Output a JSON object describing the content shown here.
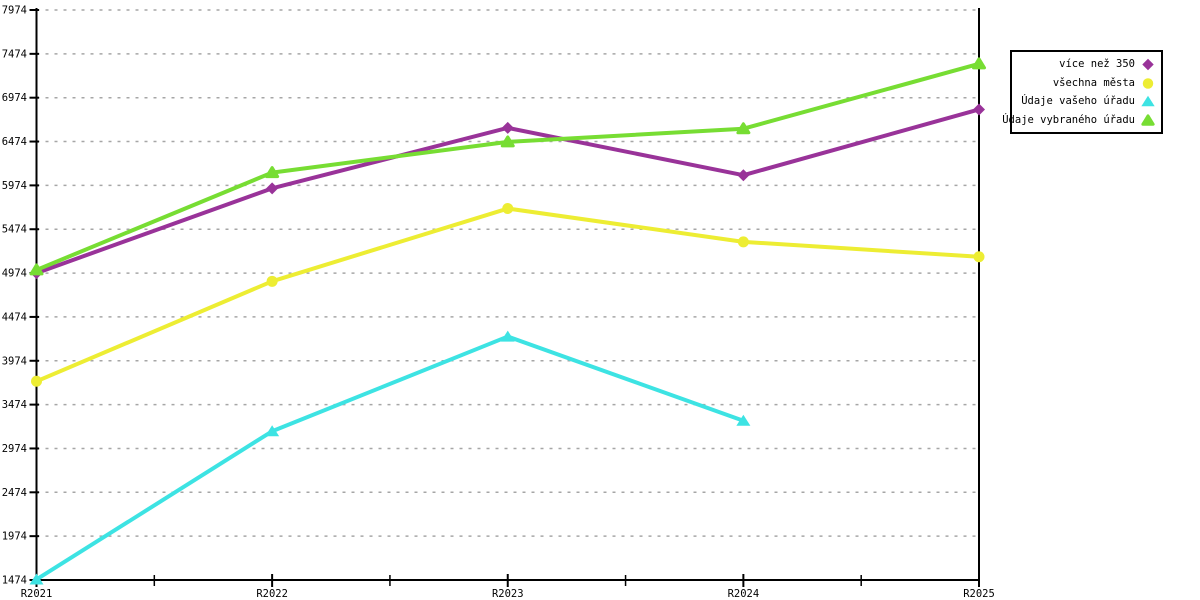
{
  "chart_data": {
    "type": "line",
    "title": "",
    "x_categories": [
      "R2021",
      "R2022",
      "R2023",
      "R2024",
      "R2025"
    ],
    "y_ticks": [
      1474,
      1974,
      2474,
      2974,
      3474,
      3974,
      4474,
      4974,
      5474,
      5974,
      6474,
      6974,
      7474,
      7974
    ],
    "ylim": [
      1474,
      7974
    ],
    "grid": "horizontal-dashed",
    "legend_position": "top-right",
    "axis_color": "#000000",
    "grid_color": "#A6A6A6",
    "background": "#FFFFFF",
    "series": [
      {
        "name": "více než 350",
        "color": "#993399",
        "marker": "diamond",
        "values": [
          4974,
          5940,
          6630,
          6090,
          6840
        ]
      },
      {
        "name": "všechna města",
        "color": "#EDED33",
        "marker": "circle",
        "values": [
          3740,
          4880,
          5710,
          5330,
          5160
        ]
      },
      {
        "name": "Údaje vašeho úřadu",
        "color": "#3DE3E3",
        "marker": "triangle",
        "values": [
          1480,
          3170,
          4250,
          3290,
          null
        ]
      },
      {
        "name": "Údaje vybraného úřadu",
        "color": "#77DD33",
        "marker": "triangle-rounded",
        "values": [
          5010,
          6120,
          6470,
          6620,
          7360
        ]
      }
    ]
  }
}
